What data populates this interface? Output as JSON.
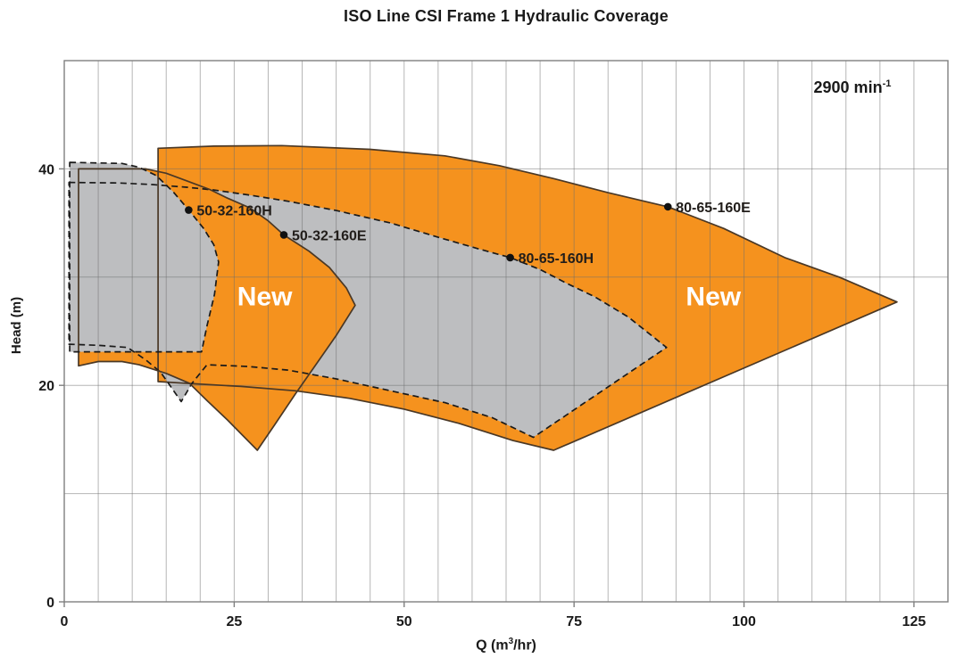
{
  "title": "ISO Line CSI Frame 1 Hydraulic Coverage",
  "annotation": {
    "speed_text": "2900 min",
    "speed_sup": "-1"
  },
  "axes": {
    "x_title_pre": "Q (m",
    "x_title_sup": "3",
    "x_title_post": "/hr)",
    "y_title": "Head (m)"
  },
  "chart_data": {
    "type": "area",
    "title": "ISO Line CSI Frame 1 Hydraulic Coverage",
    "xlabel": "Q (m3/hr)",
    "ylabel": "Head (m)",
    "xlim": [
      0,
      130
    ],
    "ylim": [
      0,
      50
    ],
    "x_ticks": [
      0,
      25,
      50,
      75,
      100,
      125
    ],
    "x_minor_step": 5,
    "y_ticks": [
      0,
      20,
      40
    ],
    "y_grid_step": 10,
    "grid": true,
    "speed_label": "2900 min-1",
    "regions": [
      {
        "id": "new-80-65-160E",
        "status": "new",
        "fill": "#F5921E",
        "border": "solid",
        "points": [
          [
            13.8,
            41.9
          ],
          [
            22,
            42.1
          ],
          [
            32,
            42.15
          ],
          [
            45,
            41.8
          ],
          [
            56,
            41.2
          ],
          [
            64,
            40.3
          ],
          [
            72,
            39.1
          ],
          [
            80,
            37.8
          ],
          [
            88.8,
            36.5
          ],
          [
            97,
            34.5
          ],
          [
            106,
            31.8
          ],
          [
            114,
            30.0
          ],
          [
            122.5,
            27.7
          ],
          [
            72,
            14
          ],
          [
            66,
            14.9
          ],
          [
            58,
            16.5
          ],
          [
            50,
            17.8
          ],
          [
            42,
            18.8
          ],
          [
            34,
            19.5
          ],
          [
            26,
            19.9
          ],
          [
            19,
            20.15
          ],
          [
            13.8,
            20.35
          ]
        ]
      },
      {
        "id": "old-80-65-160H",
        "status": "old",
        "fill": "#BDBEC0",
        "border": "dashed",
        "points": [
          [
            0.7,
            38.75
          ],
          [
            8,
            38.7
          ],
          [
            13,
            38.55
          ],
          [
            18,
            38.3
          ],
          [
            22,
            38.05
          ],
          [
            27,
            37.6
          ],
          [
            33,
            37.0
          ],
          [
            40,
            36.15
          ],
          [
            48,
            35.0
          ],
          [
            56,
            33.5
          ],
          [
            61,
            32.6
          ],
          [
            65.6,
            31.8
          ],
          [
            70,
            30.7
          ],
          [
            74,
            29.4
          ],
          [
            78,
            28.2
          ],
          [
            83,
            26.3
          ],
          [
            88.6,
            23.5
          ],
          [
            69,
            15.2
          ],
          [
            63,
            17.0
          ],
          [
            56,
            18.4
          ],
          [
            48,
            19.5
          ],
          [
            40,
            20.6
          ],
          [
            33,
            21.4
          ],
          [
            27,
            21.75
          ],
          [
            21,
            21.9
          ],
          [
            18.8,
            20.2
          ],
          [
            17.2,
            18.5
          ],
          [
            14.2,
            21.2
          ],
          [
            12,
            22.35
          ],
          [
            9.3,
            23.5
          ],
          [
            5,
            23.7
          ],
          [
            0.7,
            23.8
          ]
        ]
      },
      {
        "id": "new-50-32-160E",
        "status": "new",
        "fill": "#F5921E",
        "border": "solid",
        "points": [
          [
            2.1,
            40.0
          ],
          [
            12,
            40.0
          ],
          [
            15,
            39.6
          ],
          [
            18,
            38.9
          ],
          [
            21.4,
            38.1
          ],
          [
            24,
            37.3
          ],
          [
            27.3,
            36.4
          ],
          [
            30,
            35.2
          ],
          [
            32.3,
            33.9
          ],
          [
            36,
            32.4
          ],
          [
            39,
            30.9
          ],
          [
            41.5,
            29.0
          ],
          [
            42.8,
            27.4
          ],
          [
            40,
            24.6
          ],
          [
            37,
            21.9
          ],
          [
            34,
            19.2
          ],
          [
            31,
            16.4
          ],
          [
            28.4,
            14.0
          ],
          [
            24,
            16.8
          ],
          [
            21,
            18.6
          ],
          [
            18.4,
            20.2
          ],
          [
            15,
            21.1
          ],
          [
            11,
            21.9
          ],
          [
            8.5,
            22.2
          ],
          [
            5,
            22.2
          ],
          [
            2.1,
            21.8
          ]
        ]
      },
      {
        "id": "old-50-32-160H",
        "status": "old",
        "fill": "#BDBEC0",
        "border": "dashed",
        "points": [
          [
            0.8,
            40.6
          ],
          [
            8.5,
            40.5
          ],
          [
            11,
            40.15
          ],
          [
            13.5,
            39.4
          ],
          [
            16,
            37.9
          ],
          [
            18.3,
            36.2
          ],
          [
            20.5,
            34.5
          ],
          [
            22,
            33.0
          ],
          [
            22.7,
            31.4
          ],
          [
            22.1,
            28.4
          ],
          [
            21,
            25.5
          ],
          [
            20.2,
            23.1
          ],
          [
            0.8,
            23.1
          ]
        ]
      }
    ],
    "curve_labels": [
      {
        "text": "50-32-160H",
        "q": 18.3,
        "h": 36.2
      },
      {
        "text": "50-32-160E",
        "q": 32.3,
        "h": 33.9
      },
      {
        "text": "80-65-160H",
        "q": 65.6,
        "h": 31.8
      },
      {
        "text": "80-65-160E",
        "q": 88.8,
        "h": 36.5
      }
    ],
    "area_labels": [
      {
        "text": "New",
        "q": 29.5,
        "h": 28.2
      },
      {
        "text": "New",
        "q": 95.5,
        "h": 28.2
      }
    ]
  },
  "colors": {
    "new_fill": "#F5921E",
    "old_fill": "#BDBEC0",
    "solid_stroke": "#4a3826",
    "dashed_stroke": "#1a1a1a",
    "grid": "#9b9b9b",
    "plot_border": "#7f7f7f",
    "text": "#1a1a1a",
    "area_label_text": "#ffffff"
  }
}
